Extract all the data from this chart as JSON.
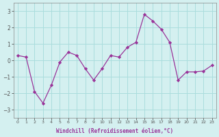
{
  "x": [
    0,
    1,
    2,
    3,
    4,
    5,
    6,
    7,
    8,
    9,
    10,
    11,
    12,
    13,
    14,
    15,
    16,
    17,
    18,
    19,
    20,
    21,
    22,
    23
  ],
  "y": [
    0.3,
    0.2,
    -1.9,
    -2.6,
    -1.5,
    -0.1,
    0.5,
    0.3,
    -0.5,
    -1.2,
    -0.5,
    0.3,
    0.2,
    0.8,
    1.1,
    2.8,
    2.4,
    1.9,
    1.1,
    -1.2,
    -0.7,
    -0.7,
    -0.65,
    -0.3
  ],
  "line_color": "#993399",
  "marker_color": "#993399",
  "bg_color": "#d4f0f0",
  "grid_color": "#aadddd",
  "xlabel": "Windchill (Refroidissement éolien,°C)",
  "yticks": [
    -3,
    -2,
    -1,
    0,
    1,
    2,
    3
  ],
  "xticks": [
    0,
    1,
    2,
    3,
    4,
    5,
    6,
    7,
    8,
    9,
    10,
    11,
    12,
    13,
    14,
    15,
    16,
    17,
    18,
    19,
    20,
    21,
    22,
    23
  ],
  "ylim": [
    -3.5,
    3.5
  ],
  "xlim": [
    -0.5,
    23.5
  ]
}
